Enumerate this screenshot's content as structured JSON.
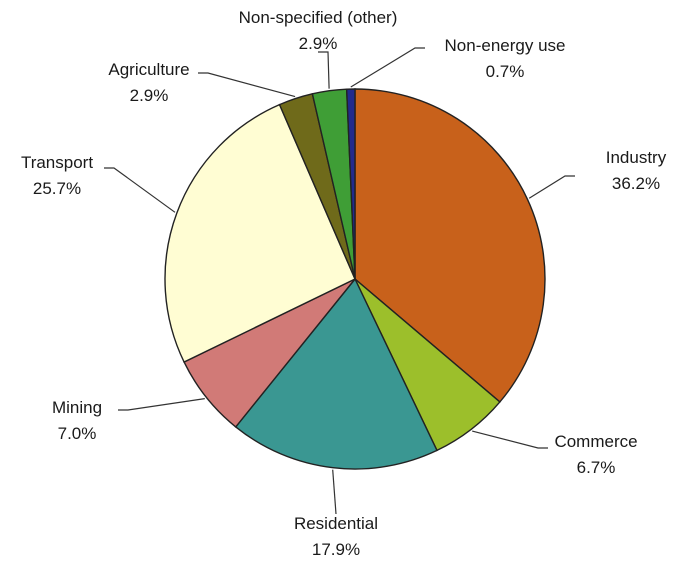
{
  "chart_data": {
    "type": "pie",
    "start_angle_deg": 0,
    "direction": "clockwise",
    "slices": [
      {
        "label": "Industry",
        "value": 36.2,
        "value_label": "36.2%",
        "color": "#C8611B"
      },
      {
        "label": "Commerce",
        "value": 6.7,
        "value_label": "6.7%",
        "color": "#9CBF2B"
      },
      {
        "label": "Residential",
        "value": 17.9,
        "value_label": "17.9%",
        "color": "#3A9792"
      },
      {
        "label": "Mining",
        "value": 7.0,
        "value_label": "7.0%",
        "color": "#D17A77"
      },
      {
        "label": "Transport",
        "value": 25.7,
        "value_label": "25.7%",
        "color": "#FFFDD3"
      },
      {
        "label": "Agriculture",
        "value": 2.9,
        "value_label": "2.9%",
        "color": "#6F6A1A"
      },
      {
        "label": "Non-specified (other)",
        "value": 2.9,
        "value_label": "2.9%",
        "color": "#3F9E36"
      },
      {
        "label": "Non-energy use",
        "value": 0.7,
        "value_label": "0.7%",
        "color": "#232A8C"
      }
    ]
  }
}
